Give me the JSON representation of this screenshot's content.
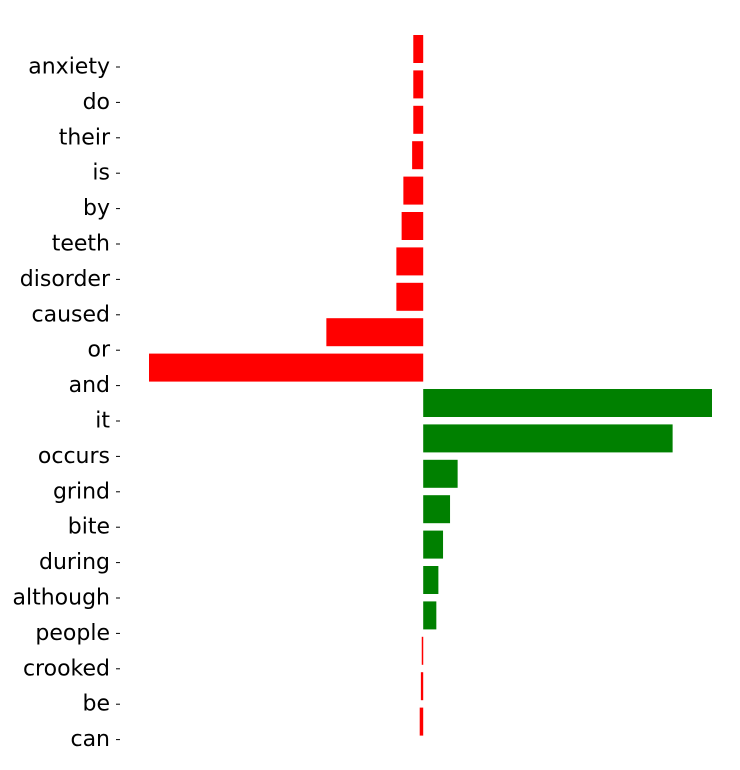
{
  "chart_data": {
    "type": "bar",
    "orientation": "horizontal",
    "categories": [
      "anxiety",
      "do",
      "their",
      "is",
      "by",
      "teeth",
      "disorder",
      "caused",
      "or",
      "and",
      "it",
      "occurs",
      "grind",
      "bite",
      "during",
      "although",
      "people",
      "crooked",
      "be",
      "can"
    ],
    "values": [
      -0.0034,
      -0.0034,
      -0.0034,
      -0.0038,
      -0.0068,
      -0.0074,
      -0.0092,
      -0.0092,
      -0.0332,
      -0.094,
      0.099,
      0.0855,
      0.0118,
      0.0092,
      0.0068,
      0.0052,
      0.0045,
      -0.0005,
      -0.0008,
      -0.0012
    ],
    "title": "",
    "xlabel": "",
    "ylabel": "",
    "xlim": [
      -0.094,
      0.099
    ],
    "grid": false,
    "legend": "none",
    "colors": {
      "positive": "#008000",
      "negative": "#ff0000"
    }
  }
}
